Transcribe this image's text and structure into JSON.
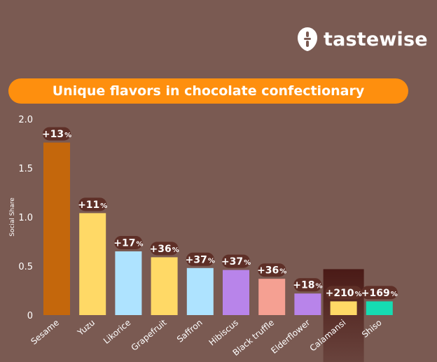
{
  "brand": {
    "name": "tastewise"
  },
  "title": "Unique flavors in chocolate confectionary",
  "chart_data": {
    "type": "bar",
    "title": "Unique flavors in chocolate confectionary",
    "xlabel": "",
    "ylabel": "Social Share",
    "ylim": [
      0,
      2.0
    ],
    "yticks": [
      "2.0",
      "1.5",
      "1.0",
      "0.5",
      "0"
    ],
    "categories": [
      "Sesame",
      "Yuzu",
      "Likorice",
      "Grapefruit",
      "Saffron",
      "Hibiscus",
      "Black truffle",
      "Elderflower",
      "Calamansi",
      "Shiso"
    ],
    "values": [
      1.76,
      1.04,
      0.65,
      0.59,
      0.48,
      0.46,
      0.37,
      0.22,
      0.14,
      0.14
    ],
    "growth": [
      "+13",
      "+11",
      "+17",
      "+36",
      "+37",
      "+37",
      "+36",
      "+18",
      "+210",
      "+169"
    ],
    "growth_unit": "%",
    "colors": [
      "#c4670c",
      "#ffd966",
      "#aee3ff",
      "#ffd966",
      "#aee3ff",
      "#b884ea",
      "#f5a092",
      "#b884ea",
      "#ffd966",
      "#16dcb2"
    ],
    "highlight_index": 8,
    "highlight_color": "#4a1a16",
    "grid": false
  }
}
